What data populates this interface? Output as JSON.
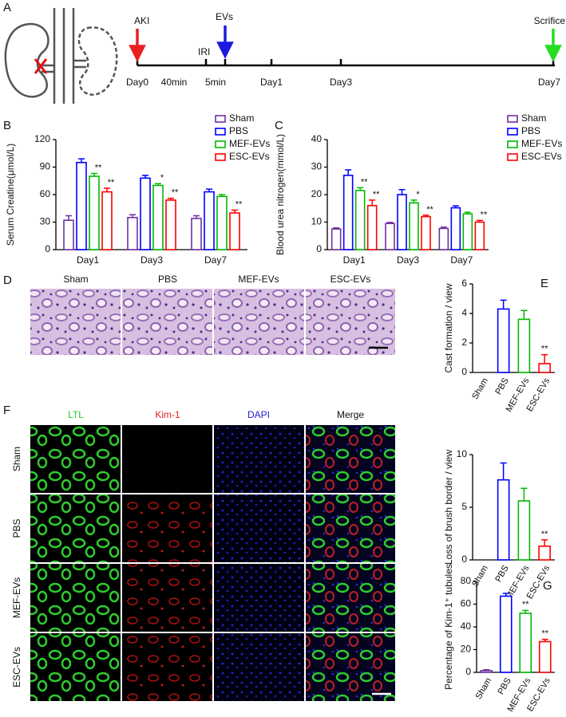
{
  "panels": [
    "A",
    "B",
    "C",
    "D",
    "E",
    "F",
    "G"
  ],
  "timeline": {
    "events": [
      "AKI",
      "IRI",
      "EVs",
      "Scrifice"
    ],
    "times": [
      "Day0",
      "40min",
      "5min",
      "Day1",
      "Day3",
      "Day7"
    ]
  },
  "histology": {
    "columns": [
      "Sham",
      "PBS",
      "MEF-EVs",
      "ESC-EVs"
    ]
  },
  "fluorescence": {
    "columns": [
      "LTL",
      "Kim-1",
      "DAPI",
      "Merge"
    ],
    "rows": [
      "Sham",
      "PBS",
      "MEF-EVs",
      "ESC-EVs"
    ]
  },
  "chart_data": [
    {
      "type": "bar",
      "ylabel": "Serum Creatine(μmol/L)",
      "categories": [
        "Day1",
        "Day3",
        "Day7"
      ],
      "ylim": [
        0,
        120
      ],
      "yticks": [
        0,
        30,
        60,
        90,
        120
      ],
      "series": [
        {
          "name": "Sham",
          "color": "#7030a0",
          "values": [
            32,
            35,
            34
          ],
          "errors": [
            5,
            3,
            3
          ],
          "annotations": [
            null,
            null,
            null
          ]
        },
        {
          "name": "PBS",
          "color": "#0000ff",
          "values": [
            95,
            78,
            63
          ],
          "errors": [
            4,
            3,
            3
          ],
          "annotations": [
            null,
            null,
            null
          ]
        },
        {
          "name": "MEF-EVs",
          "color": "#00bb00",
          "values": [
            80,
            70,
            58
          ],
          "errors": [
            3,
            2,
            2
          ],
          "annotations": [
            "**",
            "*",
            null
          ]
        },
        {
          "name": "ESC-EVs",
          "color": "#ff0000",
          "values": [
            63,
            54,
            40
          ],
          "errors": [
            4,
            2,
            3
          ],
          "annotations": [
            "**",
            "**",
            "**"
          ]
        }
      ]
    },
    {
      "type": "bar",
      "ylabel": "Blood urea nitrogen(mmol/L)",
      "categories": [
        "Day1",
        "Day3",
        "Day7"
      ],
      "ylim": [
        0,
        40
      ],
      "yticks": [
        0,
        10,
        20,
        30,
        40
      ],
      "series": [
        {
          "name": "Sham",
          "color": "#7030a0",
          "values": [
            7.5,
            9.5,
            7.7
          ],
          "errors": [
            0.4,
            0.4,
            0.5
          ],
          "annotations": [
            null,
            null,
            null
          ]
        },
        {
          "name": "PBS",
          "color": "#0000ff",
          "values": [
            27,
            20,
            15.2
          ],
          "errors": [
            2,
            1.8,
            0.7
          ],
          "annotations": [
            null,
            null,
            null
          ]
        },
        {
          "name": "MEF-EVs",
          "color": "#00bb00",
          "values": [
            21.5,
            17,
            13
          ],
          "errors": [
            1,
            1,
            0.6
          ],
          "annotations": [
            "**",
            "*",
            null
          ]
        },
        {
          "name": "ESC-EVs",
          "color": "#ff0000",
          "values": [
            16,
            12,
            10
          ],
          "errors": [
            2,
            0.5,
            0.6
          ],
          "annotations": [
            "**",
            "**",
            "**"
          ]
        }
      ]
    },
    {
      "type": "bar",
      "ylabel": "Cast formation / view",
      "categories": [
        "Sham",
        "PBS",
        "MEF-EVs",
        "ESC-EVs"
      ],
      "colors": [
        "#7030a0",
        "#0000ff",
        "#00bb00",
        "#ff0000"
      ],
      "values": [
        0,
        4.3,
        3.6,
        0.6
      ],
      "errors": [
        0,
        0.6,
        0.6,
        0.6
      ],
      "annotations": [
        null,
        null,
        null,
        "**"
      ],
      "ylim": [
        0,
        6
      ],
      "yticks": [
        0,
        2,
        4,
        6
      ]
    },
    {
      "type": "bar",
      "ylabel": "Loss of brush border / view",
      "categories": [
        "Sham",
        "PBS",
        "MEF-EVs",
        "ESC-EVs"
      ],
      "colors": [
        "#7030a0",
        "#0000ff",
        "#00bb00",
        "#ff0000"
      ],
      "values": [
        0,
        7.6,
        5.6,
        1.3
      ],
      "errors": [
        0,
        1.6,
        1.2,
        0.6
      ],
      "annotations": [
        null,
        null,
        null,
        "**"
      ],
      "ylim": [
        0,
        10
      ],
      "yticks": [
        0,
        5,
        10
      ]
    },
    {
      "type": "bar",
      "ylabel": "Percentage of Kim-1⁺ tubules",
      "categories": [
        "Sham",
        "PBS",
        "MEF-EVs",
        "ESC-EVs"
      ],
      "colors": [
        "#7030a0",
        "#0000ff",
        "#00bb00",
        "#ff0000"
      ],
      "values": [
        1.5,
        67,
        52,
        27
      ],
      "errors": [
        0.8,
        2.5,
        2.5,
        2
      ],
      "annotations": [
        null,
        null,
        "**",
        "**"
      ],
      "ylim": [
        0,
        80
      ],
      "yticks": [
        0,
        20,
        40,
        60,
        80
      ]
    }
  ]
}
